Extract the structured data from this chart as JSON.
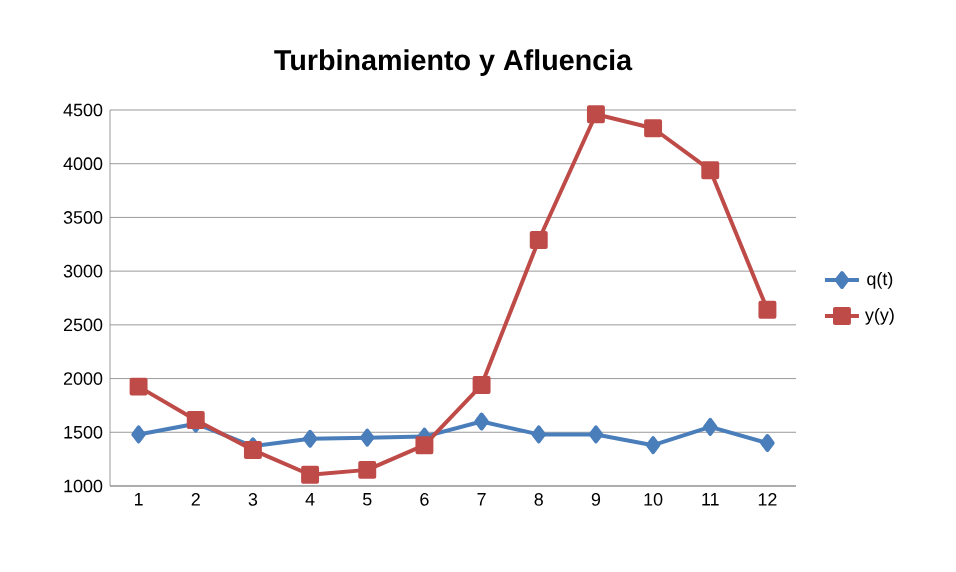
{
  "chart_data": {
    "type": "line",
    "title": "Turbinamiento y Afluencia",
    "categories": [
      "1",
      "2",
      "3",
      "4",
      "5",
      "6",
      "7",
      "8",
      "9",
      "10",
      "11",
      "12"
    ],
    "series": [
      {
        "name": "q(t)",
        "color": "#4a7ebb",
        "marker": "diamond",
        "values": [
          1480,
          1580,
          1370,
          1440,
          1450,
          1460,
          1600,
          1480,
          1480,
          1380,
          1550,
          1400
        ]
      },
      {
        "name": "y(y)",
        "color": "#be4b48",
        "marker": "square",
        "values": [
          1925,
          1615,
          1335,
          1105,
          1150,
          1380,
          1940,
          3290,
          4460,
          4330,
          3940,
          2640
        ]
      }
    ],
    "ylim": [
      1000,
      4500
    ],
    "yticks": [
      1000,
      1500,
      2000,
      2500,
      3000,
      3500,
      4000,
      4500
    ],
    "grid": "y",
    "legend": "right",
    "line_style": "solid"
  }
}
